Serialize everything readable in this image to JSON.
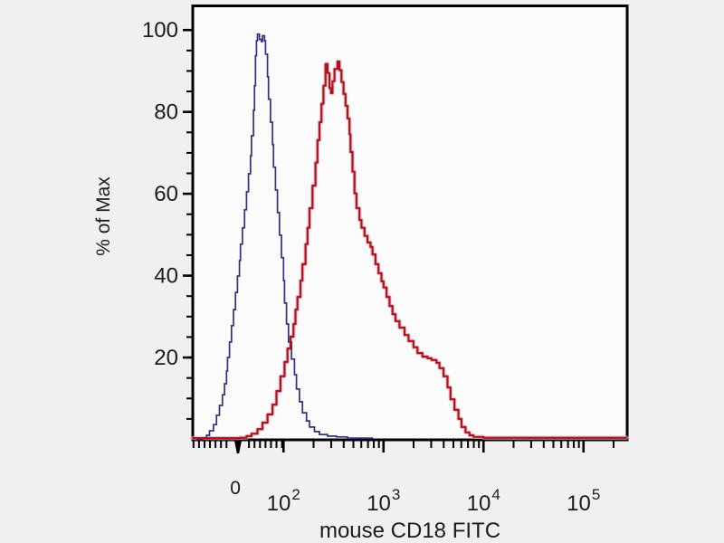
{
  "figure": {
    "background_color": "#f1eff0",
    "plot_background_color": "#fcfbfb",
    "frame_color": "#000000"
  },
  "chart_data": {
    "type": "line",
    "subtype": "flow-cytometry-histogram-overlay",
    "title": "",
    "xlabel": "mouse CD18 FITC",
    "ylabel": "% of Max",
    "ylim": [
      0,
      100
    ],
    "grid": false,
    "legend": "none",
    "x_axis": {
      "scale": "biexponential",
      "tick_labels": [
        {
          "s": 0.01,
          "text": "0"
        },
        {
          "s": 0.5,
          "base": "10",
          "exp": "2"
        },
        {
          "s": 1.5,
          "base": "10",
          "exp": "3"
        },
        {
          "s": 2.5,
          "base": "10",
          "exp": "4"
        },
        {
          "s": 3.5,
          "base": "10",
          "exp": "5"
        }
      ],
      "zero_tick_s": 0.045,
      "major_tick_s": [
        0.5,
        1.5,
        2.5,
        3.5
      ],
      "minor_linear_s": [
        -0.4,
        -0.345,
        -0.29,
        -0.235,
        -0.18,
        -0.125,
        -0.07,
        0.155,
        0.21,
        0.265,
        0.32,
        0.375,
        0.43,
        0.485
      ],
      "minor_log_s": [
        0.801,
        0.977,
        1.102,
        1.199,
        1.278,
        1.345,
        1.403,
        1.454,
        1.801,
        1.977,
        2.102,
        2.199,
        2.278,
        2.345,
        2.403,
        2.454,
        2.801,
        2.977,
        3.102,
        3.199,
        3.278,
        3.345,
        3.403,
        3.454,
        3.801
      ]
    },
    "y_axis": {
      "major_ticks": [
        20,
        40,
        60,
        80,
        100
      ],
      "major_tick_labels": [
        "20",
        "40",
        "60",
        "80",
        "100"
      ],
      "minor_ticks": [
        5,
        10,
        15,
        25,
        30,
        35,
        45,
        50,
        55,
        65,
        70,
        75,
        85,
        90,
        95
      ]
    },
    "series": [
      {
        "id": "blue_curve",
        "description": "unstained control histogram",
        "color": "#31317d",
        "line_width": 1.7,
        "peak_percent": 99,
        "points": [
          [
            -0.37,
            0
          ],
          [
            -0.31,
            0.3
          ],
          [
            -0.27,
            1
          ],
          [
            -0.24,
            2.1
          ],
          [
            -0.2,
            3.6
          ],
          [
            -0.17,
            5.9
          ],
          [
            -0.14,
            8.3
          ],
          [
            -0.11,
            10.9
          ],
          [
            -0.09,
            13.6
          ],
          [
            -0.07,
            16.7
          ],
          [
            -0.06,
            20
          ],
          [
            -0.04,
            23.8
          ],
          [
            -0.02,
            27.8
          ],
          [
            0,
            31.7
          ],
          [
            0.02,
            35.9
          ],
          [
            0.04,
            39.9
          ],
          [
            0.06,
            43.7
          ],
          [
            0.07,
            47.7
          ],
          [
            0.09,
            51.7
          ],
          [
            0.11,
            56.1
          ],
          [
            0.13,
            60.5
          ],
          [
            0.15,
            64.9
          ],
          [
            0.17,
            69.3
          ],
          [
            0.18,
            74.2
          ],
          [
            0.2,
            80.4
          ],
          [
            0.21,
            86.4
          ],
          [
            0.22,
            93.7
          ],
          [
            0.23,
            97.4
          ],
          [
            0.24,
            99
          ],
          [
            0.26,
            97.7
          ],
          [
            0.28,
            97.2
          ],
          [
            0.29,
            98.6
          ],
          [
            0.31,
            97.4
          ],
          [
            0.32,
            94.1
          ],
          [
            0.34,
            88.6
          ],
          [
            0.35,
            83.1
          ],
          [
            0.37,
            77.5
          ],
          [
            0.39,
            72
          ],
          [
            0.4,
            66.5
          ],
          [
            0.42,
            60.9
          ],
          [
            0.44,
            55.4
          ],
          [
            0.46,
            49.9
          ],
          [
            0.48,
            44.4
          ],
          [
            0.5,
            38.8
          ],
          [
            0.51,
            33.3
          ],
          [
            0.53,
            28.2
          ],
          [
            0.55,
            23.8
          ],
          [
            0.58,
            19.6
          ],
          [
            0.61,
            15.8
          ],
          [
            0.63,
            12.3
          ],
          [
            0.66,
            9.2
          ],
          [
            0.69,
            6.5
          ],
          [
            0.73,
            4.5
          ],
          [
            0.76,
            3
          ],
          [
            0.81,
            1.9
          ],
          [
            0.86,
            1.2
          ],
          [
            0.94,
            0.8
          ],
          [
            1.03,
            0.6
          ],
          [
            1.14,
            0.3
          ],
          [
            1.26,
            0.3
          ],
          [
            1.39,
            0.1
          ]
        ]
      },
      {
        "id": "red_curve",
        "description": "stained sample histogram",
        "color": "#aa1523",
        "halo_color": "#e2a4a8",
        "line_width": 2.2,
        "peak_percent": 92,
        "points": [
          [
            -0.41,
            0.3
          ],
          [
            -0.1,
            0.3
          ],
          [
            0.06,
            0.4
          ],
          [
            0.13,
            0.8
          ],
          [
            0.18,
            1.4
          ],
          [
            0.24,
            2.5
          ],
          [
            0.29,
            4.1
          ],
          [
            0.34,
            6.1
          ],
          [
            0.39,
            8.5
          ],
          [
            0.43,
            11.8
          ],
          [
            0.47,
            15.4
          ],
          [
            0.51,
            18.9
          ],
          [
            0.54,
            22.2
          ],
          [
            0.57,
            25.1
          ],
          [
            0.6,
            28.2
          ],
          [
            0.62,
            31.7
          ],
          [
            0.64,
            34.8
          ],
          [
            0.67,
            38.8
          ],
          [
            0.69,
            42.8
          ],
          [
            0.72,
            47.7
          ],
          [
            0.74,
            51.7
          ],
          [
            0.76,
            56.5
          ],
          [
            0.79,
            62
          ],
          [
            0.82,
            67.6
          ],
          [
            0.84,
            73.1
          ],
          [
            0.86,
            77.5
          ],
          [
            0.88,
            82
          ],
          [
            0.9,
            86.4
          ],
          [
            0.92,
            91.7
          ],
          [
            0.94,
            89.5
          ],
          [
            0.96,
            85.8
          ],
          [
            0.975,
            84.6
          ],
          [
            0.99,
            87.5
          ],
          [
            1.01,
            90.5
          ],
          [
            1.04,
            92.3
          ],
          [
            1.06,
            90.2
          ],
          [
            1.08,
            87.3
          ],
          [
            1.1,
            84.4
          ],
          [
            1.12,
            81.5
          ],
          [
            1.14,
            78.4
          ],
          [
            1.16,
            74.5
          ],
          [
            1.17,
            70.2
          ],
          [
            1.19,
            65.4
          ],
          [
            1.21,
            60.1
          ],
          [
            1.23,
            56.5
          ],
          [
            1.26,
            53.6
          ],
          [
            1.28,
            51.7
          ],
          [
            1.31,
            49.7
          ],
          [
            1.34,
            48.1
          ],
          [
            1.37,
            47
          ],
          [
            1.39,
            45.2
          ],
          [
            1.42,
            42.8
          ],
          [
            1.45,
            40.6
          ],
          [
            1.48,
            38.6
          ],
          [
            1.5,
            37.1
          ],
          [
            1.53,
            34.8
          ],
          [
            1.56,
            32.6
          ],
          [
            1.59,
            30.6
          ],
          [
            1.62,
            28.9
          ],
          [
            1.66,
            27.3
          ],
          [
            1.71,
            25.5
          ],
          [
            1.75,
            24
          ],
          [
            1.8,
            22.5
          ],
          [
            1.84,
            21.1
          ],
          [
            1.89,
            20.2
          ],
          [
            1.94,
            19.8
          ],
          [
            1.98,
            19.4
          ],
          [
            2.03,
            18.7
          ],
          [
            2.06,
            17.4
          ],
          [
            2.1,
            15.4
          ],
          [
            2.14,
            12.7
          ],
          [
            2.17,
            9.8
          ],
          [
            2.21,
            7.2
          ],
          [
            2.25,
            5
          ],
          [
            2.28,
            3
          ],
          [
            2.32,
            1.7
          ],
          [
            2.36,
            1
          ],
          [
            2.4,
            0.6
          ],
          [
            2.5,
            0.4
          ],
          [
            3.93,
            0.4
          ]
        ]
      }
    ]
  }
}
